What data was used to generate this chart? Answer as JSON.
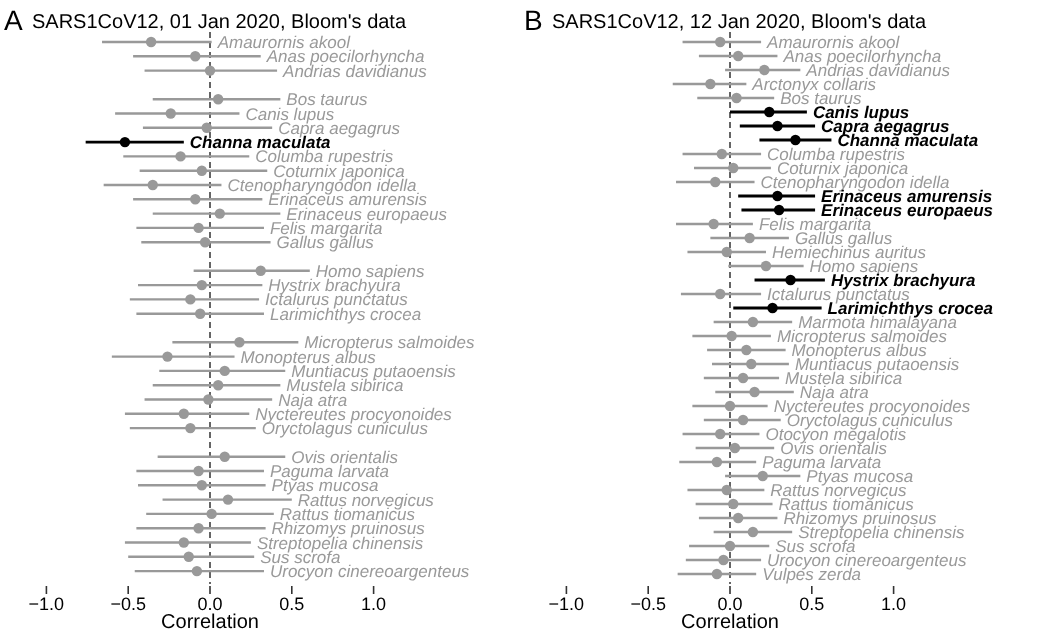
{
  "chart_data": [
    {
      "type": "scatter",
      "orientation": "horizontal",
      "title": "SARS1CoV12, 01 Jan 2020, Bloom's data",
      "annotations": [
        "A"
      ],
      "xlabel": "Correlation",
      "marker": "circle",
      "xlim": [
        -1,
        1
      ],
      "xticks": [
        {
          "value": -1,
          "label": "−1.0"
        },
        {
          "value": -0.5,
          "label": "−0.5"
        },
        {
          "value": 0,
          "label": "0.0"
        },
        {
          "value": 0.5,
          "label": "0.5"
        },
        {
          "value": 1,
          "label": "1.0"
        }
      ],
      "ref_lines": [
        {
          "axis": "x",
          "value": 0,
          "color": "#555555",
          "line_style": "dashed"
        }
      ],
      "categories": [
        "Amaurornis akool",
        "Anas poecilorhyncha",
        "Andrias davidianus",
        null,
        "Bos taurus",
        "Canis lupus",
        "Capra aegagrus",
        "Channa maculata",
        "Columba rupestris",
        "Coturnix japonica",
        "Ctenopharyngodon idella",
        "Erinaceus amurensis",
        "Erinaceus europaeus",
        "Felis margarita",
        "Gallus gallus",
        null,
        "Homo sapiens",
        "Hystrix brachyura",
        "Ictalurus punctatus",
        "Larimichthys crocea",
        null,
        "Micropterus salmoides",
        "Monopterus albus",
        "Muntiacus putaoensis",
        "Mustela sibirica",
        "Naja atra",
        "Nyctereutes procyonoides",
        "Oryctolagus cuniculus",
        null,
        "Ovis orientalis",
        "Paguma larvata",
        "Ptyas mucosa",
        "Rattus norvegicus",
        "Rattus tiomanicus",
        "Rhizomys pruinosus",
        "Streptopelia chinensis",
        "Sus scrofa",
        "Urocyon cinereoargenteus"
      ],
      "values": [
        -0.36,
        -0.09,
        0.0,
        null,
        0.05,
        -0.24,
        -0.02,
        -0.52,
        -0.18,
        -0.05,
        -0.35,
        -0.09,
        0.06,
        -0.07,
        -0.03,
        null,
        0.31,
        -0.05,
        -0.12,
        -0.06,
        null,
        0.18,
        -0.26,
        0.09,
        0.05,
        -0.01,
        -0.16,
        -0.12,
        null,
        0.09,
        -0.07,
        -0.05,
        0.11,
        0.01,
        -0.07,
        -0.16,
        -0.13,
        -0.08
      ],
      "errors": [
        [
          -0.66,
          0.01
        ],
        [
          -0.47,
          0.31
        ],
        [
          -0.4,
          0.41
        ],
        null,
        [
          -0.35,
          0.43
        ],
        [
          -0.58,
          0.18
        ],
        [
          -0.41,
          0.38
        ],
        [
          -0.76,
          -0.16
        ],
        [
          -0.53,
          0.24
        ],
        [
          -0.43,
          0.35
        ],
        [
          -0.65,
          0.07
        ],
        [
          -0.47,
          0.32
        ],
        [
          -0.35,
          0.43
        ],
        [
          -0.45,
          0.33
        ],
        [
          -0.42,
          0.37
        ],
        null,
        [
          -0.1,
          0.61
        ],
        [
          -0.44,
          0.32
        ],
        [
          -0.49,
          0.3
        ],
        [
          -0.45,
          0.33
        ],
        null,
        [
          -0.23,
          0.54
        ],
        [
          -0.6,
          0.15
        ],
        [
          -0.31,
          0.46
        ],
        [
          -0.35,
          0.43
        ],
        [
          -0.4,
          0.38
        ],
        [
          -0.52,
          0.24
        ],
        [
          -0.49,
          0.28
        ],
        null,
        [
          -0.32,
          0.46
        ],
        [
          -0.45,
          0.33
        ],
        [
          -0.44,
          0.34
        ],
        [
          -0.29,
          0.5
        ],
        [
          -0.39,
          0.39
        ],
        [
          -0.45,
          0.34
        ],
        [
          -0.52,
          0.25
        ],
        [
          -0.5,
          0.27
        ],
        [
          -0.46,
          0.33
        ]
      ],
      "colors": [
        "#999999",
        "#999999",
        "#999999",
        null,
        "#999999",
        "#999999",
        "#999999",
        "#000000",
        "#999999",
        "#999999",
        "#999999",
        "#999999",
        "#999999",
        "#999999",
        "#999999",
        null,
        "#999999",
        "#999999",
        "#999999",
        "#999999",
        null,
        "#999999",
        "#999999",
        "#999999",
        "#999999",
        "#999999",
        "#999999",
        "#999999",
        null,
        "#999999",
        "#999999",
        "#999999",
        "#999999",
        "#999999",
        "#999999",
        "#999999",
        "#999999",
        "#999999"
      ]
    },
    {
      "type": "scatter",
      "orientation": "horizontal",
      "title": "SARS1CoV12, 12 Jan 2020, Bloom's data",
      "annotations": [
        "B"
      ],
      "xlabel": "Correlation",
      "marker": "circle",
      "xlim": [
        -1,
        1
      ],
      "xticks": [
        {
          "value": -1,
          "label": "−1.0"
        },
        {
          "value": -0.5,
          "label": "−0.5"
        },
        {
          "value": 0,
          "label": "0.0"
        },
        {
          "value": 0.5,
          "label": "0.5"
        },
        {
          "value": 1,
          "label": "1.0"
        }
      ],
      "ref_lines": [
        {
          "axis": "x",
          "value": 0,
          "color": "#555555",
          "line_style": "dashed"
        }
      ],
      "categories": [
        "Amaurornis akool",
        "Anas poecilorhyncha",
        "Andrias davidianus",
        "Arctonyx collaris",
        "Bos taurus",
        "Canis lupus",
        "Capra aegagrus",
        "Channa maculata",
        "Columba rupestris",
        "Coturnix japonica",
        "Ctenopharyngodon idella",
        "Erinaceus amurensis",
        "Erinaceus europaeus",
        "Felis margarita",
        "Gallus gallus",
        "Hemiechinus auritus",
        "Homo sapiens",
        "Hystrix brachyura",
        "Ictalurus punctatus",
        "Larimichthys crocea",
        "Marmota himalayana",
        "Micropterus salmoides",
        "Monopterus albus",
        "Muntiacus putaoensis",
        "Mustela sibirica",
        "Naja atra",
        "Nyctereutes procyonoides",
        "Oryctolagus cuniculus",
        "Otocyon megalotis",
        "Ovis orientalis",
        "Paguma larvata",
        "Ptyas mucosa",
        "Rattus norvegicus",
        "Rattus tiomanicus",
        "Rhizomys pruinosus",
        "Streptopelia chinensis",
        "Sus scrofa",
        "Urocyon cinereoargenteus",
        "Vulpes zerda"
      ],
      "values": [
        -0.06,
        0.05,
        0.21,
        -0.12,
        0.04,
        0.24,
        0.29,
        0.4,
        -0.05,
        0.02,
        -0.09,
        0.29,
        0.3,
        -0.1,
        0.12,
        -0.02,
        0.22,
        0.37,
        -0.06,
        0.26,
        0.14,
        0.01,
        0.1,
        0.13,
        0.08,
        0.15,
        0.0,
        0.08,
        -0.06,
        0.03,
        -0.08,
        0.2,
        -0.02,
        0.02,
        0.05,
        0.14,
        0.0,
        -0.04,
        -0.08
      ],
      "errors": [
        [
          -0.29,
          0.19
        ],
        [
          -0.19,
          0.29
        ],
        [
          -0.03,
          0.43
        ],
        [
          -0.35,
          0.1
        ],
        [
          -0.2,
          0.27
        ],
        [
          0.0,
          0.47
        ],
        [
          0.06,
          0.52
        ],
        [
          0.18,
          0.62
        ],
        [
          -0.29,
          0.19
        ],
        [
          -0.22,
          0.25
        ],
        [
          -0.33,
          0.15
        ],
        [
          0.05,
          0.52
        ],
        [
          0.07,
          0.52
        ],
        [
          -0.33,
          0.14
        ],
        [
          -0.12,
          0.36
        ],
        [
          -0.26,
          0.22
        ],
        [
          -0.01,
          0.45
        ],
        [
          0.15,
          0.58
        ],
        [
          -0.3,
          0.19
        ],
        [
          0.02,
          0.56
        ],
        [
          -0.1,
          0.38
        ],
        [
          -0.23,
          0.25
        ],
        [
          -0.14,
          0.34
        ],
        [
          -0.11,
          0.36
        ],
        [
          -0.16,
          0.3
        ],
        [
          -0.09,
          0.39
        ],
        [
          -0.23,
          0.23
        ],
        [
          -0.16,
          0.31
        ],
        [
          -0.29,
          0.18
        ],
        [
          -0.21,
          0.27
        ],
        [
          -0.31,
          0.16
        ],
        [
          -0.03,
          0.43
        ],
        [
          -0.26,
          0.21
        ],
        [
          -0.21,
          0.26
        ],
        [
          -0.19,
          0.29
        ],
        [
          -0.1,
          0.38
        ],
        [
          -0.25,
          0.24
        ],
        [
          -0.27,
          0.19
        ],
        [
          -0.32,
          0.16
        ]
      ],
      "colors": [
        "#999999",
        "#999999",
        "#999999",
        "#999999",
        "#999999",
        "#000000",
        "#000000",
        "#000000",
        "#999999",
        "#999999",
        "#999999",
        "#000000",
        "#000000",
        "#999999",
        "#999999",
        "#999999",
        "#999999",
        "#000000",
        "#999999",
        "#000000",
        "#999999",
        "#999999",
        "#999999",
        "#999999",
        "#999999",
        "#999999",
        "#999999",
        "#999999",
        "#999999",
        "#999999",
        "#999999",
        "#999999",
        "#999999",
        "#999999",
        "#999999",
        "#999999",
        "#999999",
        "#999999",
        "#999999"
      ]
    }
  ]
}
